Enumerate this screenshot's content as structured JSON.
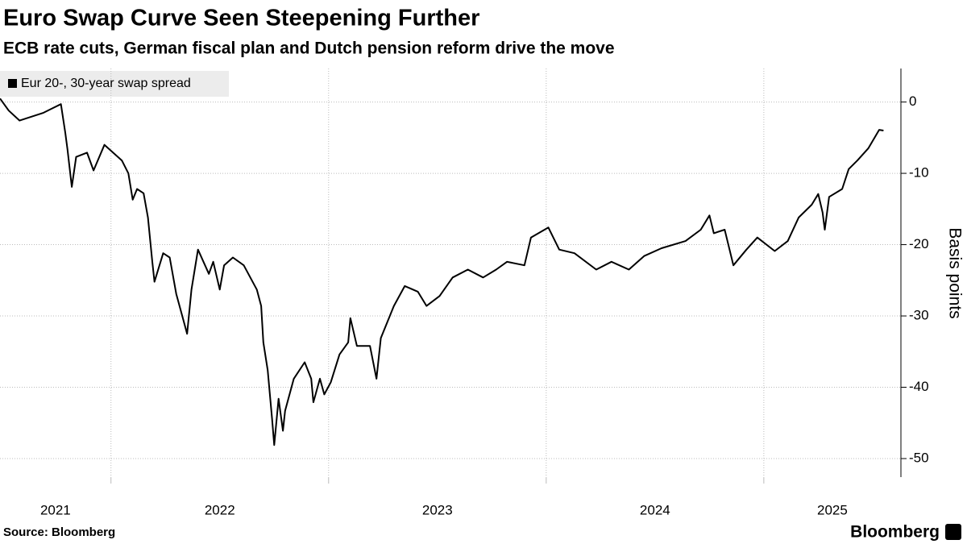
{
  "chart_data": {
    "type": "line",
    "title": "Euro Swap Curve Seen Steepening Further",
    "subtitle": "ECB rate cuts, German fiscal plan and Dutch pension reform drive the move",
    "y_label": "Basis points",
    "source": "Source: Bloomberg",
    "brand": "Bloomberg",
    "grid": true,
    "legend": "top-left",
    "xlim": [
      2021.49,
      2025.63
    ],
    "xticks": [
      {
        "value": 2021,
        "label": "2021"
      },
      {
        "value": 2022,
        "label": "2022"
      },
      {
        "value": 2023,
        "label": "2023"
      },
      {
        "value": 2024,
        "label": "2024"
      },
      {
        "value": 2025,
        "label": "2025"
      }
    ],
    "ylim": [
      -52.6,
      4.7
    ],
    "yticks": [
      0,
      -10,
      -20,
      -30,
      -40,
      -50
    ],
    "x": [
      2021.49,
      2021.53,
      2021.58,
      2021.64,
      2021.69,
      2021.73,
      2021.77,
      2021.79,
      2021.8,
      2021.82,
      2021.84,
      2021.89,
      2021.92,
      2021.97,
      2022.05,
      2022.08,
      2022.1,
      2022.12,
      2022.15,
      2022.17,
      2022.19,
      2022.2,
      2022.24,
      2022.27,
      2022.3,
      2022.35,
      2022.37,
      2022.4,
      2022.45,
      2022.47,
      2022.5,
      2022.52,
      2022.56,
      2022.61,
      2022.67,
      2022.69,
      2022.7,
      2022.72,
      2022.74,
      2022.75,
      2022.77,
      2022.79,
      2022.8,
      2022.84,
      2022.89,
      2022.92,
      2022.93,
      2022.96,
      2022.98,
      2023.01,
      2023.05,
      2023.09,
      2023.1,
      2023.13,
      2023.19,
      2023.22,
      2023.24,
      2023.3,
      2023.35,
      2023.41,
      2023.45,
      2023.51,
      2023.57,
      2023.64,
      2023.71,
      2023.77,
      2023.82,
      2023.9,
      2023.93,
      2024.01,
      2024.06,
      2024.13,
      2024.23,
      2024.3,
      2024.38,
      2024.45,
      2024.53,
      2024.64,
      2024.71,
      2024.75,
      2024.77,
      2024.82,
      2024.86,
      2024.92,
      2024.97,
      2025.05,
      2025.11,
      2025.16,
      2025.22,
      2025.25,
      2025.27,
      2025.28,
      2025.3,
      2025.36,
      2025.39,
      2025.43,
      2025.48,
      2025.53,
      2025.55
    ],
    "series": [
      {
        "name": "Eur 20-, 30-year swap spread",
        "color": "#000000",
        "values": [
          0.5,
          -1.2,
          -2.6,
          -2.0,
          -1.5,
          -0.9,
          -0.3,
          -4.3,
          -6.6,
          -11.9,
          -7.7,
          -7.1,
          -9.6,
          -6.0,
          -8.2,
          -10.0,
          -13.7,
          -12.2,
          -12.8,
          -16.2,
          -22.4,
          -25.2,
          -21.2,
          -21.8,
          -26.9,
          -32.5,
          -26.3,
          -20.7,
          -24.1,
          -22.4,
          -26.3,
          -22.9,
          -21.8,
          -22.9,
          -26.3,
          -28.6,
          -33.7,
          -37.6,
          -44.4,
          -48.1,
          -41.6,
          -46.1,
          -43.3,
          -38.8,
          -36.5,
          -38.8,
          -42.1,
          -38.8,
          -41.0,
          -39.3,
          -35.4,
          -33.7,
          -30.3,
          -34.2,
          -34.2,
          -38.8,
          -33.1,
          -28.6,
          -25.8,
          -26.6,
          -28.6,
          -27.2,
          -24.6,
          -23.5,
          -24.6,
          -23.5,
          -22.4,
          -22.9,
          -19.0,
          -17.6,
          -20.7,
          -21.2,
          -23.5,
          -22.4,
          -23.5,
          -21.6,
          -20.5,
          -19.5,
          -17.9,
          -15.9,
          -18.4,
          -17.9,
          -22.9,
          -20.7,
          -19.0,
          -20.9,
          -19.5,
          -16.2,
          -14.4,
          -12.9,
          -15.5,
          -17.9,
          -13.3,
          -12.2,
          -9.4,
          -8.2,
          -6.5,
          -3.9,
          -4.0
        ]
      }
    ]
  }
}
